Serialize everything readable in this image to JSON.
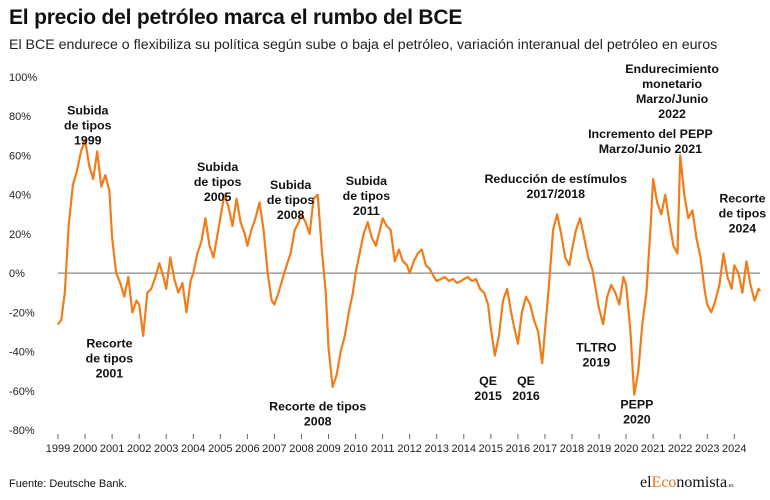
{
  "title": "El precio del petróleo marca el rumbo del BCE",
  "subtitle": "El BCE endurece o flexibiliza su política según sube o baja el petróleo, variación interanual del petróleo en euros",
  "source": "Fuente: Deutsche Bank.",
  "logo": {
    "prefix": "el",
    "accent": "Eco",
    "suffix": "nomista",
    "tld": ".es"
  },
  "colors": {
    "line": "#f07d1a",
    "zero_line": "#888888",
    "grid": "#d9d9d9",
    "logo_accent": "#e8731a"
  },
  "chart_data": {
    "type": "line",
    "title": "El precio del petróleo marca el rumbo del BCE",
    "subtitle": "El BCE endurece o flexibiliza su política según sube o baja el petróleo, variación interanual del petróleo en euros",
    "xlabel": "",
    "ylabel": "",
    "xlim": [
      1999.0,
      2024.95
    ],
    "ylim": [
      -80,
      100
    ],
    "y_ticks": [
      100,
      80,
      60,
      40,
      20,
      0,
      -20,
      -40,
      -60,
      -80
    ],
    "y_tick_labels": [
      "100%",
      "80%",
      "60%",
      "40%",
      "20%",
      "0%",
      "-20%",
      "-40%",
      "-60%",
      "-80%"
    ],
    "x_ticks": [
      1999,
      2000,
      2001,
      2002,
      2003,
      2004,
      2005,
      2006,
      2007,
      2008,
      2009,
      2010,
      2011,
      2012,
      2013,
      2014,
      2015,
      2016,
      2017,
      2018,
      2019,
      2020,
      2021,
      2022,
      2023,
      2024
    ],
    "x_tick_labels": [
      "1999",
      "2000",
      "2001",
      "2002",
      "2003",
      "2004",
      "2005",
      "2006",
      "2007",
      "2008",
      "2009",
      "2010",
      "2011",
      "2012",
      "2013",
      "2014",
      "2015",
      "2016",
      "2017",
      "2018",
      "2019",
      "2020",
      "2021",
      "2022",
      "2023",
      "2024"
    ],
    "grid": false,
    "series": [
      {
        "x": [
          1999.0,
          1999.12,
          1999.25,
          1999.4,
          1999.55,
          1999.7,
          1999.85,
          2000.0,
          2000.15,
          2000.3,
          2000.45,
          2000.6,
          2000.75,
          2000.9,
          2001.0,
          2001.15,
          2001.3,
          2001.45,
          2001.6,
          2001.75,
          2001.9,
          2002.0,
          2002.15,
          2002.3,
          2002.45,
          2002.6,
          2002.75,
          2002.9,
          2003.0,
          2003.15,
          2003.3,
          2003.45,
          2003.6,
          2003.75,
          2003.9,
          2004.0,
          2004.15,
          2004.3,
          2004.45,
          2004.6,
          2004.75,
          2004.9,
          2005.0,
          2005.15,
          2005.3,
          2005.45,
          2005.6,
          2005.75,
          2005.9,
          2006.0,
          2006.15,
          2006.3,
          2006.45,
          2006.6,
          2006.75,
          2006.9,
          2007.0,
          2007.15,
          2007.3,
          2007.45,
          2007.6,
          2007.75,
          2007.9,
          2008.0,
          2008.15,
          2008.3,
          2008.45,
          2008.6,
          2008.75,
          2008.9,
          2009.0,
          2009.15,
          2009.3,
          2009.45,
          2009.6,
          2009.75,
          2009.9,
          2010.0,
          2010.15,
          2010.3,
          2010.45,
          2010.6,
          2010.75,
          2010.9,
          2011.0,
          2011.15,
          2011.3,
          2011.45,
          2011.6,
          2011.75,
          2011.9,
          2012.0,
          2012.15,
          2012.3,
          2012.45,
          2012.6,
          2012.75,
          2012.9,
          2013.0,
          2013.15,
          2013.3,
          2013.45,
          2013.6,
          2013.75,
          2013.9,
          2014.0,
          2014.15,
          2014.3,
          2014.45,
          2014.6,
          2014.75,
          2014.9,
          2015.0,
          2015.15,
          2015.3,
          2015.45,
          2015.6,
          2015.75,
          2015.9,
          2016.0,
          2016.15,
          2016.3,
          2016.45,
          2016.6,
          2016.75,
          2016.9,
          2017.0,
          2017.15,
          2017.3,
          2017.45,
          2017.6,
          2017.75,
          2017.9,
          2018.0,
          2018.15,
          2018.3,
          2018.45,
          2018.6,
          2018.75,
          2018.9,
          2019.0,
          2019.15,
          2019.3,
          2019.45,
          2019.6,
          2019.75,
          2019.9,
          2020.0,
          2020.15,
          2020.3,
          2020.45,
          2020.6,
          2020.75,
          2020.9,
          2021.0,
          2021.15,
          2021.3,
          2021.45,
          2021.6,
          2021.75,
          2021.9,
          2022.0,
          2022.15,
          2022.3,
          2022.45,
          2022.6,
          2022.75,
          2022.9,
          2023.0,
          2023.15,
          2023.3,
          2023.45,
          2023.6,
          2023.75,
          2023.9,
          2024.0,
          2024.15,
          2024.3,
          2024.45,
          2024.6,
          2024.75,
          2024.9,
          2024.95
        ],
        "values": [
          -26,
          -24,
          -10,
          25,
          45,
          52,
          62,
          68,
          55,
          48,
          62,
          44,
          50,
          42,
          18,
          0,
          -5,
          -12,
          -2,
          -20,
          -14,
          -16,
          -32,
          -10,
          -8,
          -2,
          5,
          -2,
          -8,
          8,
          -3,
          -10,
          -5,
          -20,
          -4,
          0,
          10,
          16,
          28,
          14,
          8,
          20,
          28,
          40,
          34,
          24,
          38,
          26,
          20,
          14,
          22,
          28,
          36,
          22,
          0,
          -14,
          -16,
          -10,
          -3,
          4,
          10,
          22,
          26,
          30,
          26,
          20,
          38,
          40,
          12,
          -10,
          -38,
          -58,
          -52,
          -40,
          -32,
          -20,
          -10,
          0,
          10,
          20,
          26,
          18,
          14,
          22,
          28,
          24,
          22,
          6,
          12,
          6,
          4,
          0,
          6,
          10,
          12,
          4,
          2,
          -2,
          -4,
          -3,
          -2,
          -4,
          -3,
          -5,
          -4,
          -3,
          -2,
          -4,
          -3,
          -8,
          -10,
          -16,
          -28,
          -42,
          -32,
          -14,
          -8,
          -20,
          -30,
          -36,
          -20,
          -12,
          -16,
          -24,
          -30,
          -46,
          -30,
          -6,
          22,
          30,
          20,
          8,
          4,
          12,
          22,
          28,
          18,
          8,
          2,
          -10,
          -18,
          -26,
          -12,
          -6,
          -10,
          -16,
          -2,
          -6,
          -28,
          -62,
          -50,
          -26,
          -10,
          22,
          48,
          36,
          30,
          40,
          26,
          14,
          10,
          60,
          40,
          28,
          32,
          18,
          8,
          -8,
          -16,
          -20,
          -14,
          -6,
          10,
          -2,
          -8,
          4,
          0,
          -10,
          6,
          -6,
          -14,
          -8,
          -9
        ],
        "notes": "approximate yoy % read from the plotted line"
      }
    ],
    "annotations": [
      {
        "lines": [
          "Subida",
          "de tipos",
          "1999"
        ],
        "at": [
          2000.1,
          81
        ]
      },
      {
        "lines": [
          "Recorte",
          "de tipos",
          "2001"
        ],
        "at": [
          2000.9,
          -38
        ]
      },
      {
        "lines": [
          "Subida",
          "de tipos",
          "2005"
        ],
        "at": [
          2004.9,
          52
        ]
      },
      {
        "lines": [
          "Subida",
          "de tipos",
          "2008"
        ],
        "at": [
          2007.6,
          43
        ]
      },
      {
        "lines": [
          "Subida",
          "de tipos",
          "2011"
        ],
        "at": [
          2010.4,
          45
        ]
      },
      {
        "lines": [
          "Recorte de tipos",
          "2008"
        ],
        "at": [
          2008.6,
          -70
        ]
      },
      {
        "lines": [
          "Reducción de estímulos",
          "2017/2018"
        ],
        "at": [
          2017.4,
          46
        ]
      },
      {
        "lines": [
          "QE",
          "2015"
        ],
        "at": [
          2014.9,
          -57
        ]
      },
      {
        "lines": [
          "QE",
          "2016"
        ],
        "at": [
          2016.3,
          -57
        ]
      },
      {
        "lines": [
          "TLTRO",
          "2019"
        ],
        "at": [
          2018.9,
          -40
        ]
      },
      {
        "lines": [
          "Incremento del PEPP",
          "Marzo/Junio 2021"
        ],
        "at": [
          2020.9,
          69
        ]
      },
      {
        "lines": [
          "Endurecimiento",
          "monetario",
          "Marzo/Junio",
          "2022"
        ],
        "at": [
          2021.7,
          102
        ]
      },
      {
        "lines": [
          "PEPP",
          "2020"
        ],
        "at": [
          2020.4,
          -69
        ]
      },
      {
        "lines": [
          "Recorte",
          "de tipos",
          "2024"
        ],
        "at": [
          2024.3,
          36
        ]
      }
    ]
  }
}
